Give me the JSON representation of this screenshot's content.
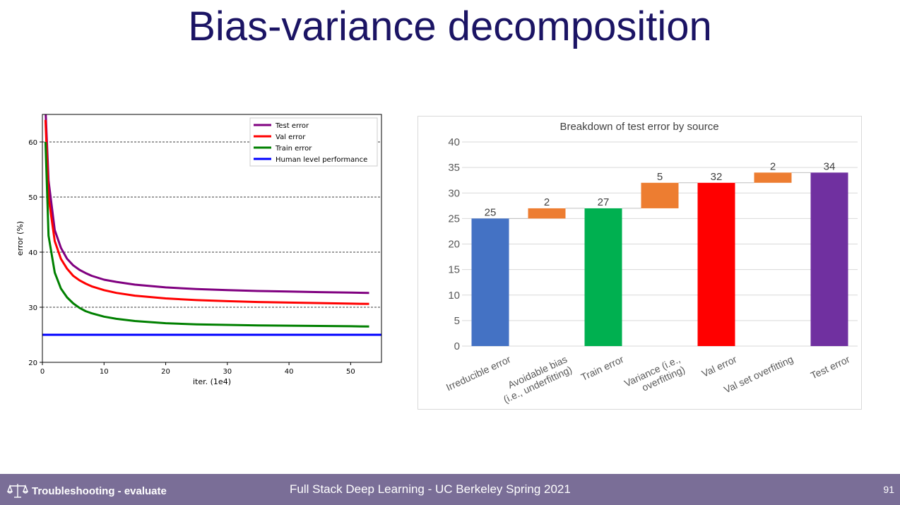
{
  "slide": {
    "title": "Bias-variance decomposition",
    "footer_section": "Troubleshooting - evaluate",
    "footer_course": "Full Stack Deep Learning - UC Berkeley Spring 2021",
    "page_number": "91"
  },
  "icons": {
    "footer_icon": "scales-icon"
  },
  "colors": {
    "title": "#1b1464",
    "footer_bg": "#7a6e97",
    "test": "#800080",
    "val": "#ff0000",
    "train": "#008000",
    "human": "#0000ff",
    "wf_blue": "#4472c4",
    "wf_orange": "#ed7d31",
    "wf_green": "#00b050",
    "wf_red": "#ff0000",
    "wf_purple": "#7030a0"
  },
  "chart_data": [
    {
      "type": "line",
      "title": "",
      "xlabel": "iter. (1e4)",
      "ylabel": "error (%)",
      "xlim": [
        0,
        55
      ],
      "ylim": [
        20,
        65
      ],
      "xticks": [
        0,
        10,
        20,
        30,
        40,
        50
      ],
      "yticks": [
        20,
        30,
        40,
        50,
        60
      ],
      "grid": "horizontal dashed",
      "legend": "top-right",
      "x": [
        0.5,
        1,
        2,
        3,
        4,
        5,
        6,
        7,
        8,
        10,
        12,
        15,
        20,
        25,
        30,
        35,
        40,
        45,
        50,
        53
      ],
      "series": [
        {
          "name": "Test error",
          "color": "#800080",
          "values": [
            66,
            53,
            44,
            40.8,
            38.8,
            37.6,
            36.8,
            36.2,
            35.7,
            35.0,
            34.6,
            34.1,
            33.6,
            33.3,
            33.1,
            32.95,
            32.85,
            32.75,
            32.65,
            32.6
          ]
        },
        {
          "name": "Val error",
          "color": "#ff0000",
          "values": [
            64,
            50,
            42,
            38.8,
            37,
            35.7,
            34.9,
            34.3,
            33.8,
            33.1,
            32.6,
            32.1,
            31.6,
            31.3,
            31.1,
            30.95,
            30.85,
            30.75,
            30.65,
            30.6
          ]
        },
        {
          "name": "Train error",
          "color": "#008000",
          "values": [
            60,
            43,
            36.3,
            33.4,
            31.8,
            30.7,
            29.9,
            29.3,
            28.9,
            28.3,
            27.9,
            27.5,
            27.1,
            26.9,
            26.8,
            26.7,
            26.65,
            26.6,
            26.55,
            26.5
          ]
        },
        {
          "name": "Human level performance",
          "color": "#0000ff",
          "values": [
            25,
            25,
            25,
            25,
            25,
            25,
            25,
            25,
            25,
            25,
            25,
            25,
            25,
            25,
            25,
            25,
            25,
            25,
            25,
            25
          ]
        }
      ]
    },
    {
      "type": "bar",
      "subtype": "waterfall",
      "title": "Breakdown of test error by source",
      "xlabel": "",
      "ylabel": "",
      "ylim": [
        0,
        40
      ],
      "yticks": [
        0,
        5,
        10,
        15,
        20,
        25,
        30,
        35,
        40
      ],
      "grid": "horizontal",
      "categories": [
        "Irreducible error",
        "Avoidable bias (i.e., underfitting)",
        "Train error",
        "Variance (i.e., overfitting)",
        "Val error",
        "Val set overfitting",
        "Test error"
      ],
      "category_lines": [
        [
          "Irreducible error"
        ],
        [
          "Avoidable bias",
          "(i.e., underfitting)"
        ],
        [
          "Train error"
        ],
        [
          "Variance (i.e.,",
          "overfitting)"
        ],
        [
          "Val error"
        ],
        [
          "Val set overfitting"
        ],
        [
          "Test error"
        ]
      ],
      "bases": [
        0,
        25,
        0,
        27,
        0,
        32,
        0
      ],
      "values": [
        25,
        2,
        27,
        5,
        32,
        2,
        34
      ],
      "labels": [
        "25",
        "2",
        "27",
        "5",
        "32",
        "2",
        "34"
      ],
      "colors": [
        "#4472c4",
        "#ed7d31",
        "#00b050",
        "#ed7d31",
        "#ff0000",
        "#ed7d31",
        "#7030a0"
      ]
    }
  ]
}
